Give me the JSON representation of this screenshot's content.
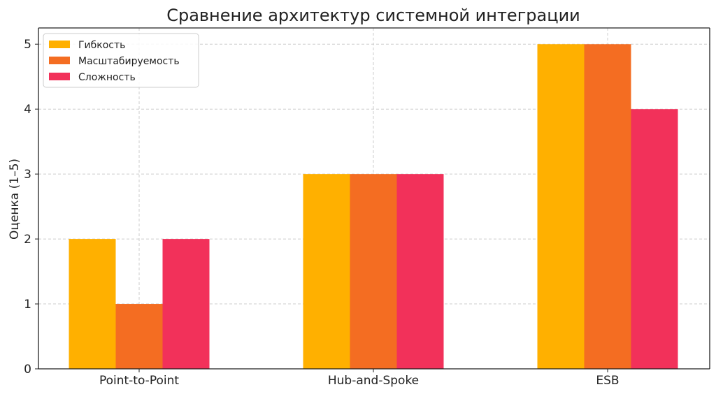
{
  "chart_data": {
    "type": "bar",
    "title": "Сравнение архитектур системной интеграции",
    "xlabel": "",
    "ylabel": "Оценка (1–5)",
    "categories": [
      "Point-to-Point",
      "Hub-and-Spoke",
      "ESB"
    ],
    "series": [
      {
        "name": "Гибкость",
        "values": [
          2,
          3,
          5
        ],
        "color": "#FFB000"
      },
      {
        "name": "Масштабируемость",
        "values": [
          1,
          3,
          5
        ],
        "color": "#F46D22"
      },
      {
        "name": "Сложность",
        "values": [
          2,
          3,
          4
        ],
        "color": "#F2315A"
      }
    ],
    "ylim": [
      0,
      5.25
    ],
    "yticks": [
      0,
      1,
      2,
      3,
      4,
      5
    ],
    "grid": true,
    "legend_position": "top-left"
  }
}
